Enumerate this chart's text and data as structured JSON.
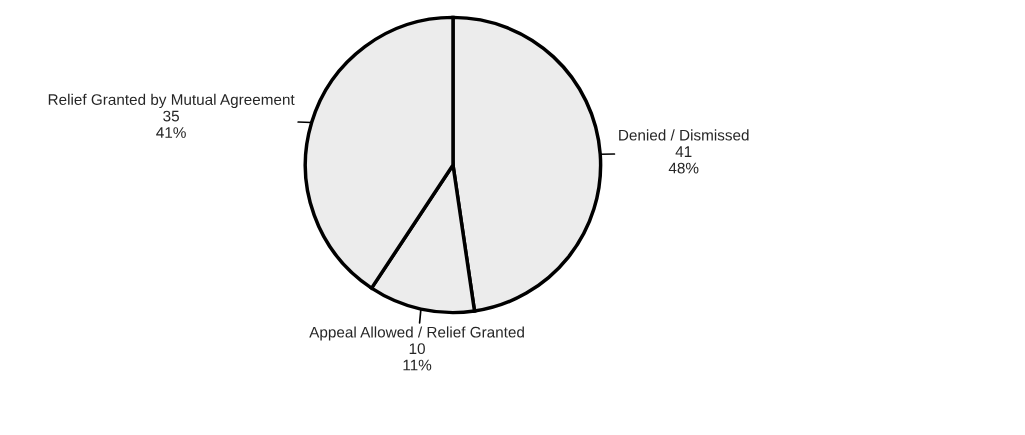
{
  "chart_data": {
    "type": "pie",
    "categories": [
      "Denied / Dismissed",
      "Appeal Allowed / Relief Granted",
      "Relief Granted by Mutual Agreement"
    ],
    "values": [
      41,
      10,
      35
    ],
    "value_labels": [
      "41\n48%",
      "10\n11%",
      "35\n41%"
    ],
    "colors": [
      "#ececec",
      "#ececec",
      "#ececec"
    ],
    "legend": false
  }
}
